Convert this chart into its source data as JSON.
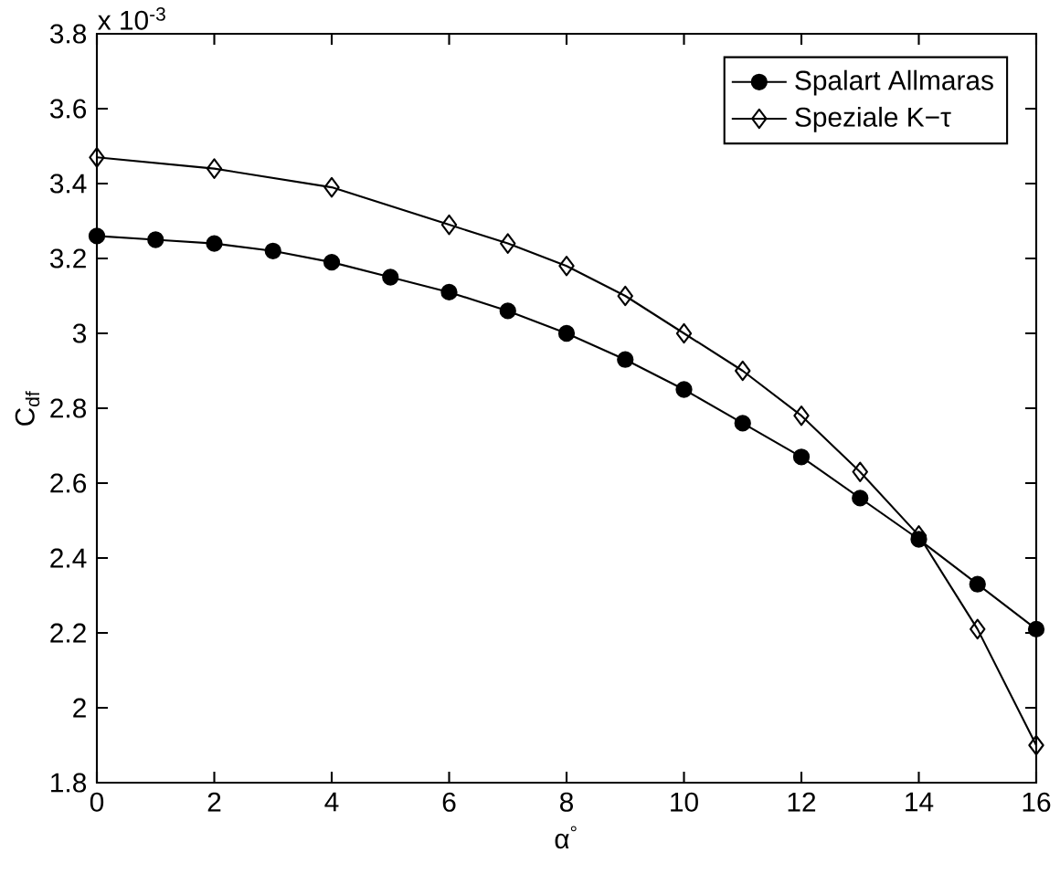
{
  "chart_data": {
    "type": "line",
    "xlabel": "α$^{°}$",
    "ylabel": "C$_{df}$",
    "annotations": [
      "x 10$^{-3}$"
    ],
    "series": [
      {
        "name": "Spalart Allmaras",
        "color": "#000000",
        "marker": "circle",
        "x": [
          0,
          1,
          2,
          3,
          4,
          5,
          6,
          7,
          8,
          9,
          10,
          11,
          12,
          13,
          14,
          15,
          16
        ],
        "values": [
          3.26,
          3.25,
          3.24,
          3.22,
          3.19,
          3.15,
          3.11,
          3.06,
          3.0,
          2.93,
          2.85,
          2.76,
          2.67,
          2.56,
          2.45,
          2.33,
          2.21
        ]
      },
      {
        "name": "Speziale K−τ",
        "color": "#000000",
        "marker": "diamond",
        "x": [
          0,
          2,
          4,
          6,
          7,
          8,
          9,
          10,
          11,
          12,
          13,
          14,
          15,
          16
        ],
        "values": [
          3.47,
          3.44,
          3.39,
          3.29,
          3.24,
          3.18,
          3.1,
          3.0,
          2.9,
          2.78,
          2.63,
          2.46,
          2.21,
          1.9
        ]
      }
    ],
    "xlim": [
      0,
      16
    ],
    "ylim": [
      1.8,
      3.8
    ],
    "xticks": [
      0,
      2,
      4,
      6,
      8,
      10,
      12,
      14,
      16
    ],
    "yticks": [
      1.8,
      2,
      2.2,
      2.4,
      2.6,
      2.8,
      3,
      3.2,
      3.4,
      3.6,
      3.8
    ],
    "grid": false,
    "legend": "top right",
    "line_style": "solid"
  }
}
